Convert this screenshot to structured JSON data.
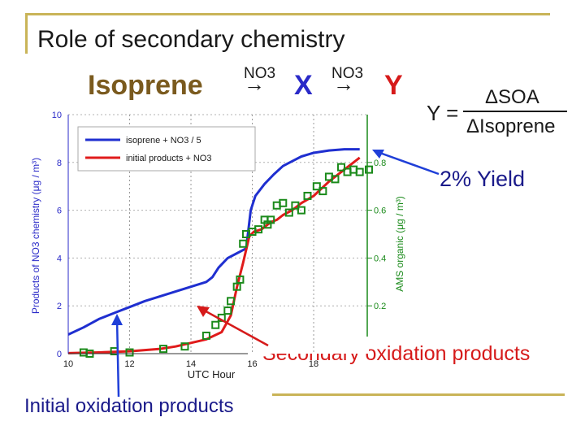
{
  "slide": {
    "title": "Role of secondary chemistry",
    "reaction": {
      "reactant": "Isoprene",
      "reagent_1": "NO3",
      "arrow_1": "→",
      "intermediate": "X",
      "reagent_2": "NO3",
      "arrow_2": "→",
      "product": "Y"
    },
    "yield_formula": {
      "lhs": "Y =",
      "numerator": "ΔSOA",
      "denominator": "ΔIsoprene"
    },
    "callouts": {
      "yield": "2% Yield",
      "secondary": "Secondary oxidation products",
      "initial": "Initial oxidation products"
    }
  },
  "colors": {
    "frame": "#c9b458",
    "isoprene": "#1f2fd0",
    "products": "#e01b1b",
    "squares": "#1a8a1a",
    "axis_left": "#2a2ac8",
    "axis_right": "#1a8a1a",
    "arrow": "#1f3fd8",
    "callout_arrow": "#d61a1a",
    "product_text": "#d61a1a",
    "x_text": "#2a2ac8"
  },
  "chart_data": {
    "type": "line",
    "xlabel": "UTC Hour",
    "ylabel_left": "Products of NO3 chemistry (μg / m³)",
    "ylabel_right": "AMS organic (μg / m³)",
    "xlim": [
      10,
      19.8
    ],
    "ylim_left": [
      0,
      10
    ],
    "ylim_right": [
      0,
      1.0
    ],
    "x_ticks": [
      "10",
      "12",
      "14",
      "16",
      "18"
    ],
    "y_ticks_left": [
      "0",
      "2",
      "4",
      "6",
      "8",
      "10"
    ],
    "y_ticks_right": [
      "0.2",
      "0.4",
      "0.6",
      "0.8"
    ],
    "legend": {
      "position": "top-left",
      "entries": [
        "isoprene + NO3 / 5",
        "initial products + NO3"
      ]
    },
    "series": [
      {
        "name": "isoprene + NO3 / 5",
        "axis": "left",
        "x": [
          10,
          10.5,
          11,
          11.5,
          12,
          12.5,
          13,
          13.5,
          14,
          14.5,
          14.7,
          14.9,
          15.2,
          15.5,
          15.8,
          15.95,
          16.1,
          16.4,
          16.7,
          17,
          17.3,
          17.6,
          18,
          18.5,
          19,
          19.5
        ],
        "values": [
          0.8,
          1.1,
          1.45,
          1.7,
          1.95,
          2.2,
          2.4,
          2.6,
          2.8,
          3.0,
          3.2,
          3.6,
          4.0,
          4.2,
          4.4,
          6.0,
          6.6,
          7.1,
          7.5,
          7.85,
          8.05,
          8.25,
          8.4,
          8.5,
          8.55,
          8.55
        ]
      },
      {
        "name": "initial products + NO3",
        "axis": "left",
        "x": [
          10,
          11,
          12,
          13,
          13.5,
          14,
          14.5,
          15,
          15.3,
          15.5,
          15.7,
          15.9,
          16.05,
          16.3,
          16.6,
          16.8,
          17,
          17.3,
          17.6,
          18,
          18.5,
          19,
          19.5
        ],
        "values": [
          0.02,
          0.05,
          0.1,
          0.2,
          0.3,
          0.45,
          0.6,
          0.9,
          1.6,
          2.8,
          3.8,
          4.9,
          5.1,
          5.2,
          5.5,
          5.6,
          5.8,
          6.0,
          6.3,
          6.6,
          7.2,
          7.7,
          8.2
        ]
      },
      {
        "name": "AMS organic",
        "axis": "right",
        "marker": "square",
        "x": [
          10.5,
          10.7,
          11.5,
          12,
          13.1,
          13.8,
          14.5,
          14.8,
          15,
          15.2,
          15.3,
          15.5,
          15.6,
          15.7,
          15.8,
          16,
          16.2,
          16.4,
          16.5,
          16.6,
          16.8,
          17,
          17.2,
          17.4,
          17.6,
          17.8,
          18.1,
          18.3,
          18.5,
          18.7,
          18.9,
          19.1,
          19.3,
          19.5,
          19.8,
          20
        ],
        "values": [
          0.005,
          0,
          0.01,
          0.005,
          0.02,
          0.03,
          0.075,
          0.12,
          0.15,
          0.18,
          0.22,
          0.28,
          0.31,
          0.46,
          0.5,
          0.51,
          0.52,
          0.56,
          0.54,
          0.56,
          0.62,
          0.63,
          0.59,
          0.62,
          0.6,
          0.66,
          0.7,
          0.68,
          0.74,
          0.73,
          0.78,
          0.76,
          0.77,
          0.76,
          0.77,
          0.78
        ]
      }
    ]
  }
}
